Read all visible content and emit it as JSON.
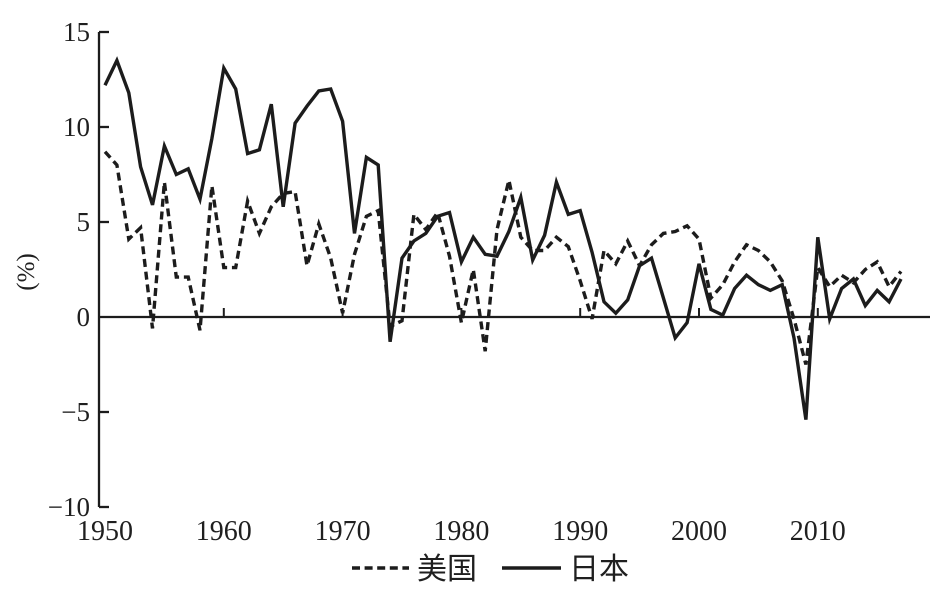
{
  "figure": {
    "background": "#ffffff",
    "ink": "#1c1c1c",
    "text_color": "#1f1f1f"
  },
  "y_axis": {
    "title": "(%)",
    "tick_values": [
      15,
      10,
      5,
      0,
      -5,
      -10
    ],
    "tick_labels": [
      "15",
      "10",
      "5",
      "0",
      "−5",
      "−10"
    ],
    "range": [
      -10,
      15
    ]
  },
  "x_axis": {
    "tick_years": [
      1950,
      1960,
      1970,
      1980,
      1990,
      2000,
      2010
    ],
    "tick_labels": [
      "1950",
      "1960",
      "1970",
      "1980",
      "1990",
      "2000",
      "2010"
    ],
    "range_years": [
      1950,
      2017
    ]
  },
  "legend": {
    "items": [
      {
        "label": "美国",
        "style": "dashed"
      },
      {
        "label": "日本",
        "style": "solid"
      }
    ],
    "position": "bottom-center"
  },
  "chart_data": {
    "type": "line",
    "title": "",
    "xlabel": "",
    "ylabel": "(%)",
    "grid": false,
    "legend_position": "bottom-center",
    "ylim": [
      -10,
      15
    ],
    "x": [
      1950,
      1951,
      1952,
      1953,
      1954,
      1955,
      1956,
      1957,
      1958,
      1959,
      1960,
      1961,
      1962,
      1963,
      1964,
      1965,
      1966,
      1967,
      1968,
      1969,
      1970,
      1971,
      1972,
      1973,
      1974,
      1975,
      1976,
      1977,
      1978,
      1979,
      1980,
      1981,
      1982,
      1983,
      1984,
      1985,
      1986,
      1987,
      1988,
      1989,
      1990,
      1991,
      1992,
      1993,
      1994,
      1995,
      1996,
      1997,
      1998,
      1999,
      2000,
      2001,
      2002,
      2003,
      2004,
      2005,
      2006,
      2007,
      2008,
      2009,
      2010,
      2011,
      2012,
      2013,
      2014,
      2015,
      2016,
      2017
    ],
    "series": [
      {
        "name": "美国",
        "style": "dashed",
        "values": [
          8.7,
          8.0,
          4.1,
          4.7,
          -0.6,
          7.1,
          2.1,
          2.1,
          -0.7,
          6.9,
          2.6,
          2.6,
          6.1,
          4.4,
          5.8,
          6.5,
          6.6,
          2.7,
          4.9,
          3.1,
          0.2,
          3.3,
          5.3,
          5.6,
          -0.5,
          -0.2,
          5.4,
          4.6,
          5.5,
          3.2,
          -0.3,
          2.5,
          -1.8,
          4.6,
          7.2,
          4.2,
          3.5,
          3.5,
          4.2,
          3.7,
          1.9,
          -0.1,
          3.5,
          2.8,
          4.0,
          2.7,
          3.8,
          4.4,
          4.5,
          4.8,
          4.1,
          1.0,
          1.7,
          2.9,
          3.8,
          3.5,
          2.9,
          1.9,
          -0.1,
          -2.5,
          2.6,
          1.6,
          2.2,
          1.8,
          2.5,
          2.9,
          1.6,
          2.4
        ]
      },
      {
        "name": "日本",
        "style": "solid",
        "values": [
          12.2,
          13.5,
          11.8,
          7.9,
          5.9,
          9.0,
          7.5,
          7.8,
          6.2,
          9.4,
          13.1,
          12.0,
          8.6,
          8.8,
          11.2,
          5.8,
          10.2,
          11.1,
          11.9,
          12.0,
          10.3,
          4.4,
          8.4,
          8.0,
          -1.3,
          3.1,
          4.0,
          4.4,
          5.3,
          5.5,
          2.9,
          4.2,
          3.3,
          3.2,
          4.5,
          6.3,
          3.0,
          4.3,
          7.1,
          5.4,
          5.6,
          3.4,
          0.8,
          0.2,
          0.9,
          2.7,
          3.1,
          1.0,
          -1.1,
          -0.3,
          2.8,
          0.4,
          0.1,
          1.5,
          2.2,
          1.7,
          1.4,
          1.7,
          -1.1,
          -5.4,
          4.2,
          -0.1,
          1.5,
          2.0,
          0.6,
          1.4,
          0.8,
          2.0
        ]
      }
    ]
  }
}
